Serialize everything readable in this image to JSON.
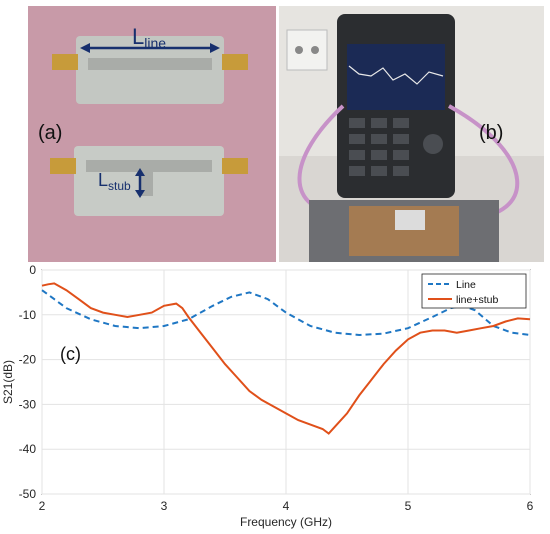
{
  "panel_a": {
    "label": "(a)",
    "line_label_main": "L",
    "line_label_sub": "line",
    "stub_label_main": "L",
    "stub_label_sub": "stub"
  },
  "panel_b": {
    "label": "(b)"
  },
  "colors": {
    "board_bg": "#c89aa8",
    "line_series": "#1f77c4",
    "stub_series": "#e0501a",
    "annotation_blue": "#17306e"
  },
  "chart_data": {
    "type": "line",
    "panel_label": "(c)",
    "xlabel": "Frequency (GHz)",
    "ylabel": "S21(dB)",
    "xlim": [
      2,
      6
    ],
    "ylim": [
      -50,
      0
    ],
    "x_ticks": [
      "2",
      "3",
      "4",
      "5",
      "6"
    ],
    "y_ticks": [
      "0",
      "-10",
      "-20",
      "-30",
      "-40",
      "-50"
    ],
    "grid": true,
    "legend_position": "top-right",
    "series": [
      {
        "name": "Line",
        "style": "dashed",
        "color": "#1f77c4",
        "x": [
          2.0,
          2.1,
          2.2,
          2.4,
          2.6,
          2.8,
          3.0,
          3.2,
          3.4,
          3.55,
          3.7,
          3.85,
          4.0,
          4.2,
          4.4,
          4.6,
          4.8,
          5.0,
          5.2,
          5.35,
          5.45,
          5.55,
          5.7,
          5.85,
          6.0
        ],
        "y": [
          -4.5,
          -6.5,
          -8.5,
          -11.0,
          -12.5,
          -13.0,
          -12.5,
          -11.0,
          -8.0,
          -6.0,
          -5.0,
          -6.5,
          -9.5,
          -12.5,
          -14.0,
          -14.5,
          -14.2,
          -13.0,
          -10.5,
          -8.5,
          -8.0,
          -9.0,
          -12.5,
          -14.0,
          -14.5
        ]
      },
      {
        "name": "line+stub",
        "style": "solid",
        "color": "#e0501a",
        "x": [
          2.0,
          2.05,
          2.1,
          2.2,
          2.3,
          2.4,
          2.5,
          2.6,
          2.7,
          2.8,
          2.9,
          3.0,
          3.1,
          3.15,
          3.2,
          3.3,
          3.4,
          3.5,
          3.6,
          3.7,
          3.8,
          3.9,
          4.0,
          4.1,
          4.2,
          4.3,
          4.35,
          4.4,
          4.5,
          4.6,
          4.7,
          4.8,
          4.9,
          5.0,
          5.1,
          5.2,
          5.3,
          5.4,
          5.5,
          5.6,
          5.7,
          5.8,
          5.9,
          6.0
        ],
        "y": [
          -3.5,
          -3.2,
          -3.0,
          -4.5,
          -6.5,
          -8.5,
          -9.5,
          -10.0,
          -10.5,
          -10.0,
          -9.5,
          -8.0,
          -7.5,
          -8.5,
          -10.5,
          -14.0,
          -17.5,
          -21.0,
          -24.0,
          -27.0,
          -29.0,
          -30.5,
          -32.0,
          -33.5,
          -34.5,
          -35.5,
          -36.5,
          -35.0,
          -32.0,
          -28.0,
          -24.5,
          -21.0,
          -18.0,
          -15.5,
          -14.0,
          -13.5,
          -13.5,
          -14.0,
          -13.5,
          -13.0,
          -12.5,
          -11.5,
          -10.8,
          -11.0
        ]
      }
    ]
  }
}
